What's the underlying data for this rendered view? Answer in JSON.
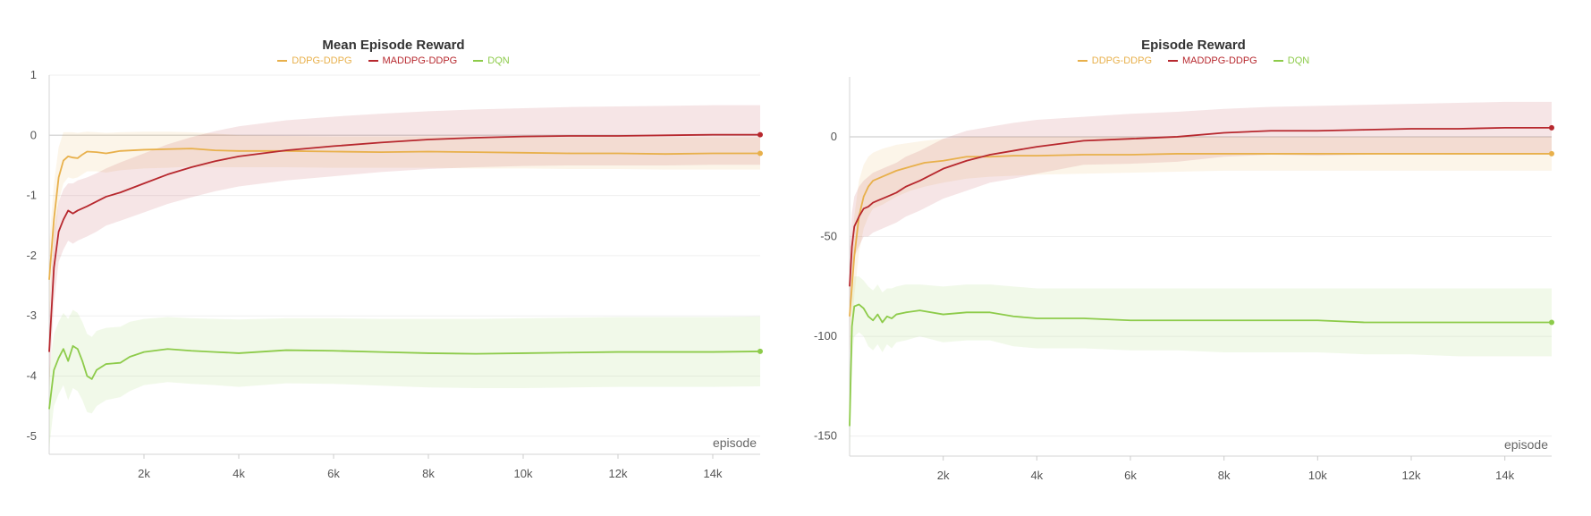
{
  "colors": {
    "DDPG-DDPG": "#e8b04b",
    "MADDPG-DDPG": "#b7282e",
    "DQN": "#8dcb4a"
  },
  "chart_data": [
    {
      "type": "line",
      "title": "Mean Episode Reward",
      "xlabel": "episode",
      "ylabel": "",
      "xlim": [
        0,
        15000
      ],
      "ylim": [
        -5.3,
        1
      ],
      "x_ticks": [
        2000,
        4000,
        6000,
        8000,
        10000,
        12000,
        14000
      ],
      "x_tick_labels": [
        "2k",
        "4k",
        "6k",
        "8k",
        "10k",
        "12k",
        "14k"
      ],
      "y_ticks": [
        1,
        0,
        -1,
        -2,
        -3,
        -4,
        -5
      ],
      "y_tick_labels": [
        "1",
        "0",
        "-1",
        "-2",
        "-3",
        "-4",
        "-5"
      ],
      "grid": true,
      "legend_position": "top-center",
      "series": [
        {
          "name": "DDPG-DDPG",
          "x": [
            0,
            100,
            200,
            300,
            400,
            500,
            600,
            700,
            800,
            1000,
            1200,
            1500,
            2000,
            2500,
            3000,
            3500,
            4000,
            5000,
            6000,
            7000,
            8000,
            9000,
            10000,
            11000,
            12000,
            13000,
            14000,
            15000
          ],
          "y": [
            -2.4,
            -1.4,
            -0.7,
            -0.42,
            -0.35,
            -0.37,
            -0.38,
            -0.32,
            -0.27,
            -0.28,
            -0.3,
            -0.26,
            -0.24,
            -0.23,
            -0.22,
            -0.25,
            -0.26,
            -0.26,
            -0.27,
            -0.28,
            -0.27,
            -0.28,
            -0.29,
            -0.3,
            -0.3,
            -0.31,
            -0.3,
            -0.3
          ],
          "band_upper": [
            -1.8,
            -0.8,
            -0.2,
            0.05,
            0.05,
            0.05,
            0.04,
            0.05,
            0.06,
            0.05,
            0.04,
            0.05,
            0.06,
            0.06,
            0.05,
            0.03,
            0.0,
            -0.01,
            -0.02,
            -0.02,
            -0.02,
            -0.02,
            -0.03,
            -0.03,
            -0.03,
            -0.03,
            -0.03,
            -0.03
          ],
          "band_lower": [
            -3.0,
            -2.0,
            -1.1,
            -0.8,
            -0.7,
            -0.72,
            -0.7,
            -0.65,
            -0.6,
            -0.6,
            -0.62,
            -0.58,
            -0.55,
            -0.54,
            -0.52,
            -0.53,
            -0.53,
            -0.53,
            -0.54,
            -0.54,
            -0.54,
            -0.55,
            -0.55,
            -0.56,
            -0.56,
            -0.57,
            -0.57,
            -0.57
          ]
        },
        {
          "name": "MADDPG-DDPG",
          "x": [
            0,
            100,
            200,
            300,
            400,
            500,
            600,
            800,
            1000,
            1200,
            1500,
            2000,
            2500,
            3000,
            3500,
            4000,
            4500,
            5000,
            6000,
            7000,
            8000,
            9000,
            10000,
            11000,
            12000,
            13000,
            14000,
            15000
          ],
          "y": [
            -3.6,
            -2.2,
            -1.6,
            -1.4,
            -1.25,
            -1.3,
            -1.25,
            -1.18,
            -1.1,
            -1.02,
            -0.95,
            -0.8,
            -0.65,
            -0.53,
            -0.43,
            -0.35,
            -0.3,
            -0.25,
            -0.18,
            -0.12,
            -0.07,
            -0.04,
            -0.02,
            -0.01,
            -0.01,
            0.0,
            0.01,
            0.01
          ],
          "band_upper": [
            -3.0,
            -1.6,
            -1.1,
            -0.9,
            -0.8,
            -0.8,
            -0.75,
            -0.7,
            -0.63,
            -0.55,
            -0.45,
            -0.3,
            -0.15,
            -0.03,
            0.07,
            0.15,
            0.2,
            0.25,
            0.31,
            0.36,
            0.4,
            0.43,
            0.45,
            0.47,
            0.48,
            0.49,
            0.5,
            0.5
          ],
          "band_lower": [
            -4.2,
            -2.8,
            -2.1,
            -1.9,
            -1.75,
            -1.8,
            -1.75,
            -1.68,
            -1.6,
            -1.5,
            -1.42,
            -1.28,
            -1.14,
            -1.03,
            -0.93,
            -0.85,
            -0.8,
            -0.75,
            -0.68,
            -0.61,
            -0.56,
            -0.53,
            -0.51,
            -0.5,
            -0.5,
            -0.5,
            -0.49,
            -0.49
          ]
        },
        {
          "name": "DQN",
          "x": [
            0,
            100,
            200,
            300,
            400,
            500,
            600,
            700,
            800,
            900,
            1000,
            1200,
            1500,
            1700,
            2000,
            2500,
            3000,
            3500,
            4000,
            5000,
            6000,
            7000,
            8000,
            9000,
            10000,
            11000,
            12000,
            13000,
            14000,
            15000
          ],
          "y": [
            -4.55,
            -3.9,
            -3.7,
            -3.55,
            -3.75,
            -3.5,
            -3.55,
            -3.75,
            -4.0,
            -4.05,
            -3.9,
            -3.8,
            -3.78,
            -3.68,
            -3.6,
            -3.55,
            -3.58,
            -3.6,
            -3.62,
            -3.57,
            -3.58,
            -3.6,
            -3.62,
            -3.63,
            -3.62,
            -3.61,
            -3.6,
            -3.6,
            -3.6,
            -3.59
          ],
          "band_upper": [
            -3.9,
            -3.3,
            -3.1,
            -2.95,
            -3.05,
            -2.9,
            -2.95,
            -3.1,
            -3.3,
            -3.35,
            -3.25,
            -3.2,
            -3.18,
            -3.1,
            -3.05,
            -3.02,
            -3.04,
            -3.05,
            -3.06,
            -3.04,
            -3.04,
            -3.05,
            -3.05,
            -3.05,
            -3.04,
            -3.03,
            -3.02,
            -3.02,
            -3.02,
            -3.01
          ],
          "band_lower": [
            -5.2,
            -4.5,
            -4.3,
            -4.15,
            -4.4,
            -4.2,
            -4.25,
            -4.4,
            -4.6,
            -4.62,
            -4.5,
            -4.4,
            -4.35,
            -4.25,
            -4.15,
            -4.1,
            -4.13,
            -4.15,
            -4.18,
            -4.12,
            -4.13,
            -4.16,
            -4.19,
            -4.2,
            -4.2,
            -4.19,
            -4.18,
            -4.18,
            -4.18,
            -4.17
          ]
        }
      ]
    },
    {
      "type": "line",
      "title": "Episode Reward",
      "xlabel": "episode",
      "ylabel": "",
      "xlim": [
        0,
        15000
      ],
      "ylim": [
        -160,
        30
      ],
      "x_ticks": [
        2000,
        4000,
        6000,
        8000,
        10000,
        12000,
        14000
      ],
      "x_tick_labels": [
        "2k",
        "4k",
        "6k",
        "8k",
        "10k",
        "12k",
        "14k"
      ],
      "y_ticks": [
        0,
        -50,
        -100,
        -150
      ],
      "y_tick_labels": [
        "0",
        "-50",
        "-100",
        "-150"
      ],
      "grid": true,
      "legend_position": "top-center",
      "series": [
        {
          "name": "DDPG-DDPG",
          "x": [
            0,
            100,
            200,
            300,
            400,
            500,
            700,
            1000,
            1300,
            1600,
            2000,
            2500,
            3000,
            3500,
            4000,
            5000,
            6000,
            7000,
            8000,
            9000,
            10000,
            11000,
            12000,
            13000,
            14000,
            15000
          ],
          "y": [
            -90,
            -60,
            -40,
            -30,
            -25,
            -22,
            -20,
            -17,
            -15,
            -13,
            -12,
            -10,
            -10,
            -9.5,
            -9.5,
            -9,
            -9,
            -8.5,
            -8.5,
            -8.5,
            -8.5,
            -8.5,
            -8.5,
            -8.5,
            -8.5,
            -8.5
          ],
          "band_upper": [
            -70,
            -40,
            -22,
            -14,
            -10,
            -8,
            -6,
            -4,
            -3,
            -2,
            -1,
            0,
            0,
            0,
            0,
            0,
            0,
            0,
            0,
            0,
            0,
            0,
            0,
            0,
            0,
            0
          ],
          "band_lower": [
            -110,
            -80,
            -58,
            -46,
            -40,
            -36,
            -34,
            -30,
            -27,
            -25,
            -23,
            -21,
            -20,
            -19.5,
            -19,
            -18.5,
            -18,
            -17.5,
            -17,
            -17,
            -17,
            -17,
            -17,
            -17,
            -17,
            -17
          ]
        },
        {
          "name": "MADDPG-DDPG",
          "x": [
            0,
            50,
            100,
            200,
            300,
            400,
            500,
            600,
            800,
            1000,
            1200,
            1500,
            2000,
            2500,
            3000,
            3500,
            4000,
            5000,
            6000,
            7000,
            8000,
            9000,
            10000,
            11000,
            12000,
            13000,
            14000,
            15000
          ],
          "y": [
            -75,
            -55,
            -45,
            -40,
            -36,
            -35,
            -33,
            -32,
            -30,
            -28,
            -25,
            -22,
            -16,
            -12,
            -9,
            -7,
            -5,
            -2,
            -1,
            0,
            2,
            3,
            3,
            3.5,
            4,
            4,
            4.5,
            4.5
          ],
          "band_upper": [
            -55,
            -38,
            -30,
            -25,
            -22,
            -20,
            -18,
            -17,
            -15,
            -13,
            -10,
            -7,
            -1,
            3,
            5,
            7,
            8.5,
            10,
            11.5,
            12.5,
            14,
            15,
            15.5,
            16,
            16.5,
            17,
            17.5,
            17.5
          ],
          "band_lower": [
            -95,
            -72,
            -60,
            -55,
            -50,
            -50,
            -48,
            -47,
            -45,
            -43,
            -40,
            -37,
            -31,
            -27,
            -23,
            -21,
            -18.5,
            -14,
            -13.5,
            -12.5,
            -10,
            -9,
            -9.5,
            -9,
            -8.5,
            -9,
            -8.5,
            -8.5
          ]
        },
        {
          "name": "DQN",
          "x": [
            0,
            50,
            100,
            200,
            300,
            400,
            500,
            600,
            700,
            800,
            900,
            1000,
            1200,
            1500,
            2000,
            2500,
            3000,
            3500,
            4000,
            5000,
            6000,
            7000,
            8000,
            9000,
            10000,
            11000,
            12000,
            13000,
            14000,
            15000
          ],
          "y": [
            -145,
            -95,
            -85,
            -84,
            -86,
            -90,
            -92,
            -89,
            -93,
            -90,
            -91,
            -89,
            -88,
            -87,
            -89,
            -88,
            -88,
            -90,
            -91,
            -91,
            -92,
            -92,
            -92,
            -92,
            -92,
            -93,
            -93,
            -93,
            -93,
            -93
          ],
          "band_upper": [
            -130,
            -78,
            -70,
            -70,
            -72,
            -75,
            -77,
            -74,
            -78,
            -76,
            -76,
            -75,
            -74,
            -74,
            -75,
            -74,
            -74,
            -75,
            -76,
            -76,
            -76,
            -76,
            -76,
            -76,
            -76,
            -76,
            -76,
            -76,
            -76,
            -76
          ],
          "band_lower": [
            -160,
            -112,
            -100,
            -98,
            -100,
            -105,
            -107,
            -104,
            -108,
            -104,
            -106,
            -103,
            -102,
            -100,
            -103,
            -102,
            -102,
            -105,
            -106,
            -106,
            -107,
            -107,
            -108,
            -108,
            -108,
            -109,
            -109,
            -110,
            -110,
            -110
          ]
        }
      ]
    }
  ]
}
